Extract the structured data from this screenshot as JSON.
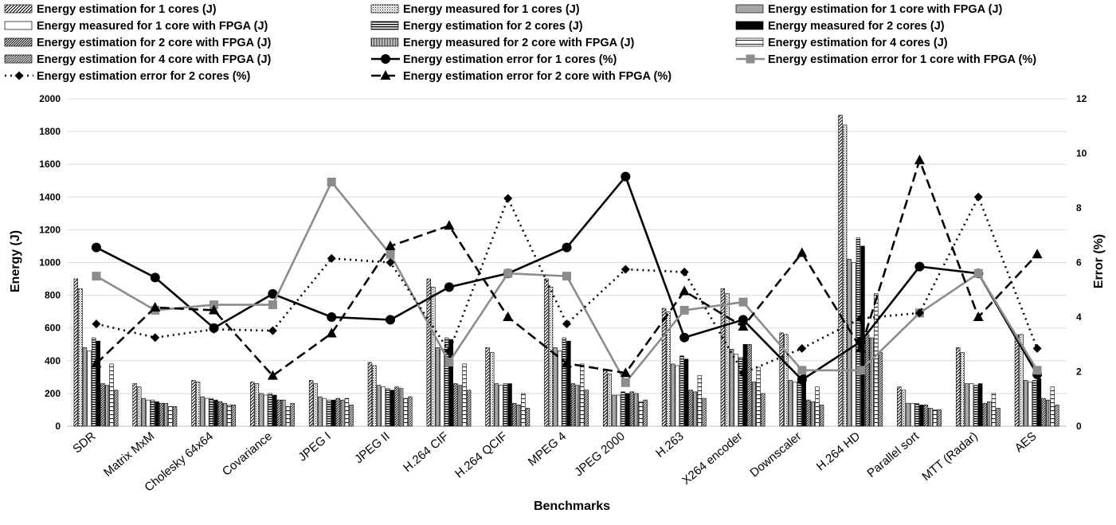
{
  "chart_data": {
    "type": "bar",
    "xlabel": "Benchmarks",
    "ylabel": "Energy (J)",
    "y2label": "Error (%)",
    "ylim": [
      0,
      2000
    ],
    "y2lim": [
      0,
      12
    ],
    "yticks": [
      0,
      200,
      400,
      600,
      800,
      1000,
      1200,
      1400,
      1600,
      1800,
      2000
    ],
    "y2ticks": [
      0,
      2,
      4,
      6,
      8,
      10,
      12
    ],
    "grid": true,
    "legend_position": "top",
    "categories": [
      "SDR",
      "Matrix MxM",
      "Cholesky 64x64",
      "Covariance",
      "JPEG I",
      "JPEG II",
      "H.264 CIF",
      "H.264 QCIF",
      "MPEG 4",
      "JPEG 2000",
      "H.263",
      "X264 encoder",
      "Downscaler",
      "H.264 HD",
      "Parallel sort",
      "MTT (Radar)",
      "AES"
    ],
    "bar_series": [
      {
        "name": "Energy estimation for 1 cores (J)",
        "pattern": "diag",
        "values": [
          900,
          260,
          280,
          270,
          280,
          390,
          900,
          480,
          900,
          340,
          720,
          840,
          570,
          1900,
          240,
          480,
          560
        ]
      },
      {
        "name": "Energy measured for 1 cores (J)",
        "pattern": "dots",
        "values": [
          840,
          240,
          270,
          260,
          260,
          370,
          850,
          450,
          850,
          320,
          700,
          810,
          560,
          1840,
          220,
          450,
          560
        ]
      },
      {
        "name": "Energy estimation for 1 core with FPGA (J)",
        "pattern": "gray",
        "values": [
          480,
          170,
          180,
          200,
          180,
          250,
          480,
          260,
          480,
          190,
          380,
          470,
          280,
          1020,
          140,
          260,
          280
        ]
      },
      {
        "name": "Energy measured for 1 core with FPGA (J)",
        "pattern": "white",
        "values": [
          460,
          160,
          170,
          190,
          170,
          240,
          470,
          250,
          460,
          190,
          370,
          440,
          270,
          1000,
          140,
          260,
          270
        ]
      },
      {
        "name": "Energy estimation for 2 cores (J)",
        "pattern": "hstripe",
        "values": [
          540,
          160,
          170,
          200,
          160,
          230,
          540,
          260,
          540,
          210,
          430,
          420,
          270,
          1150,
          140,
          250,
          280
        ]
      },
      {
        "name": "Energy measured for 2 cores (J)",
        "pattern": "black",
        "values": [
          520,
          150,
          160,
          190,
          160,
          220,
          530,
          260,
          520,
          200,
          410,
          500,
          320,
          1100,
          130,
          260,
          290
        ]
      },
      {
        "name": "Energy estimation for 2 core with FPGA (J)",
        "pattern": "diag2",
        "values": [
          260,
          140,
          150,
          160,
          170,
          240,
          260,
          140,
          260,
          210,
          220,
          500,
          160,
          560,
          130,
          140,
          170
        ]
      },
      {
        "name": "Energy measured for 2 core with FPGA (J)",
        "pattern": "vstripe",
        "values": [
          250,
          140,
          140,
          160,
          160,
          230,
          250,
          130,
          250,
          200,
          210,
          270,
          150,
          540,
          110,
          150,
          160
        ]
      },
      {
        "name": "Energy estimation for 4 cores (J)",
        "pattern": "hstripe2",
        "values": [
          380,
          120,
          130,
          120,
          170,
          170,
          380,
          200,
          380,
          150,
          310,
          360,
          240,
          810,
          100,
          200,
          240
        ]
      },
      {
        "name": "Energy estimation for 4 core with FPGA (J)",
        "pattern": "dense",
        "values": [
          220,
          120,
          130,
          140,
          130,
          180,
          220,
          110,
          220,
          160,
          170,
          200,
          130,
          450,
          100,
          110,
          130
        ]
      }
    ],
    "line_series": [
      {
        "name": "Energy estimation error for 1 cores  (%)",
        "color": "#000000",
        "dash": "",
        "marker": "circle",
        "values": [
          6.55,
          5.45,
          3.6,
          4.85,
          4.0,
          3.9,
          5.1,
          5.6,
          6.55,
          9.15,
          3.25,
          3.9,
          1.7,
          3.1,
          5.85,
          5.6,
          1.9
        ]
      },
      {
        "name": "Energy estimation error for 1 core with FPGA (%)",
        "color": "#8c8c8c",
        "dash": "",
        "marker": "square",
        "values": [
          5.5,
          4.25,
          4.45,
          4.45,
          8.95,
          6.3,
          2.35,
          5.6,
          5.5,
          1.6,
          4.25,
          4.55,
          2.05,
          2.05,
          4.15,
          5.6,
          2.05
        ]
      },
      {
        "name": "Energy estimation error for 2 cores (%)",
        "color": "#000000",
        "dash": "2,5",
        "marker": "diamond",
        "values": [
          3.75,
          3.25,
          3.55,
          3.5,
          6.15,
          6.0,
          2.75,
          8.35,
          3.75,
          5.75,
          5.65,
          1.95,
          2.85,
          3.95,
          4.15,
          8.4,
          2.85
        ]
      },
      {
        "name": "Energy estimation error for 2 core with FPGA (%)",
        "color": "#000000",
        "dash": "12,6",
        "marker": "triangle",
        "values": [
          2.3,
          4.35,
          4.25,
          1.85,
          3.4,
          6.6,
          7.35,
          4.0,
          2.3,
          1.95,
          4.95,
          3.65,
          6.35,
          2.85,
          9.75,
          4.0,
          6.3
        ]
      }
    ]
  }
}
